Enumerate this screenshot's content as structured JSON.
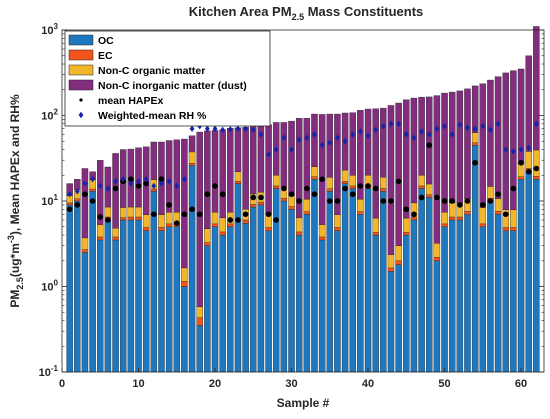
{
  "chart_data": {
    "type": "bar",
    "stacked": true,
    "title_parts": {
      "prefix": "Kitchen Area PM",
      "subscript": "2.5",
      "suffix": " Mass Constituents"
    },
    "xlabel": "Sample #",
    "ylabel_parts": {
      "a": "PM",
      "a_sub": "2.5",
      "b": "(ug*m",
      "b_sup": "-3",
      "c": "), Mean HAPEx and RH%"
    },
    "y_scale": "log",
    "ylim": [
      0.1,
      1000
    ],
    "xlim": [
      0,
      63
    ],
    "x_ticks": [
      0,
      10,
      20,
      30,
      40,
      50,
      60
    ],
    "y_ticks": [
      {
        "value": 0.1,
        "base": "10",
        "exp": "-1"
      },
      {
        "value": 1,
        "base": "10",
        "exp": "0"
      },
      {
        "value": 10,
        "base": "10",
        "exp": "1"
      },
      {
        "value": 100,
        "base": "10",
        "exp": "2"
      },
      {
        "value": 1000,
        "base": "10",
        "exp": "3"
      }
    ],
    "grid": false,
    "legend_position": "top-left",
    "colors": {
      "oc": "#1f77bd",
      "ec": "#f2541b",
      "noc_org": "#f2b62c",
      "noc_inorg": "#822d7e",
      "hapex": "#000000",
      "rh": "#1524a8"
    },
    "legend": [
      {
        "key": "oc",
        "label": "OC",
        "kind": "box"
      },
      {
        "key": "ec",
        "label": "EC",
        "kind": "box"
      },
      {
        "key": "noc_org",
        "label": "Non-C organic matter",
        "kind": "box"
      },
      {
        "key": "noc_inorg",
        "label": "Non-C inorganic matter (dust)",
        "kind": "box"
      },
      {
        "key": "hapex",
        "label": "mean HAPEx",
        "kind": "dot"
      },
      {
        "key": "rh",
        "label": "Weighted-mean RH %",
        "kind": "diamond"
      }
    ],
    "x": [
      1,
      2,
      3,
      4,
      5,
      6,
      7,
      8,
      9,
      10,
      11,
      12,
      13,
      14,
      15,
      16,
      17,
      18,
      19,
      20,
      21,
      22,
      23,
      24,
      25,
      26,
      27,
      28,
      29,
      30,
      31,
      32,
      33,
      34,
      35,
      36,
      37,
      38,
      39,
      40,
      41,
      42,
      43,
      44,
      45,
      46,
      47,
      48,
      49,
      50,
      51,
      52,
      53,
      54,
      55,
      56,
      57,
      58,
      59,
      60,
      61,
      62
    ],
    "series": [
      {
        "key": "oc",
        "name": "OC",
        "values": [
          9,
          10,
          2.5,
          13,
          3.5,
          6,
          3.5,
          6,
          6,
          6,
          4.5,
          13,
          4.5,
          5,
          5,
          1,
          26,
          0.35,
          3,
          5,
          4,
          5,
          16,
          5.5,
          8.5,
          9,
          4.5,
          14,
          10,
          8,
          4,
          7,
          18,
          3.5,
          13,
          4.5,
          16,
          14,
          7,
          14,
          4,
          13,
          1.5,
          1.8,
          4,
          6,
          14,
          11,
          2,
          5,
          6,
          6,
          7,
          45,
          5,
          10,
          7,
          4.5,
          4.5,
          18,
          22,
          18
        ]
      },
      {
        "key": "ec",
        "name": "EC",
        "values": [
          0.5,
          0.6,
          0.2,
          0.8,
          0.3,
          0.5,
          0.3,
          0.4,
          0.5,
          0.5,
          0.4,
          0.8,
          0.4,
          0.4,
          0.4,
          0.15,
          1.5,
          0.08,
          0.25,
          0.4,
          0.35,
          0.4,
          1,
          0.5,
          0.6,
          0.7,
          0.4,
          1,
          0.8,
          0.6,
          0.35,
          0.5,
          1.2,
          0.3,
          0.9,
          0.4,
          1,
          1,
          0.5,
          1,
          0.3,
          1,
          0.15,
          0.2,
          0.3,
          0.5,
          1,
          0.8,
          0.2,
          0.4,
          0.5,
          0.5,
          0.6,
          3,
          0.4,
          0.8,
          0.6,
          0.4,
          0.4,
          1.2,
          2,
          1.5
        ]
      },
      {
        "key": "noc_org",
        "name": "Non-C organic matter",
        "values": [
          2,
          3,
          1,
          4,
          1.5,
          2,
          1,
          2,
          2,
          2,
          2,
          4,
          2,
          2,
          2,
          0.5,
          10,
          0.15,
          1.5,
          2,
          2,
          2,
          5,
          2,
          3,
          3,
          2,
          5,
          4,
          3,
          2,
          3,
          6,
          1.5,
          5,
          2,
          6,
          5,
          3,
          5,
          2,
          5,
          0.7,
          1,
          2,
          3,
          5,
          4,
          1,
          2,
          3,
          3,
          3,
          15,
          3,
          4,
          3,
          3,
          3,
          8,
          14,
          20
        ]
      },
      {
        "key": "noc_inorg",
        "name": "Non-C inorganic matter (dust)",
        "values": [
          4.5,
          4.4,
          20.3,
          4.2,
          24.7,
          16.5,
          31.2,
          31.6,
          32,
          33.5,
          36.1,
          31.2,
          42.1,
          43.6,
          44.6,
          51.4,
          20.5,
          63.5,
          61.3,
          59.6,
          61.7,
          63.6,
          50,
          65,
          61.9,
          63.3,
          71.1,
          63,
          68.2,
          74.4,
          86.6,
          82.5,
          78.8,
          97.7,
          85.1,
          97.1,
          84,
          88,
          104.5,
          99,
          113.7,
          103,
          128.7,
          137,
          146.7,
          150.5,
          144,
          149.2,
          167.8,
          175.6,
          178.5,
          184.5,
          194.4,
          159,
          226.6,
          245.2,
          274.4,
          307.1,
          327.1,
          322.8,
          462,
          1060.5
        ]
      },
      {
        "key": "hapex",
        "name": "mean HAPEx",
        "values": [
          8,
          9,
          12,
          10,
          6.5,
          6,
          14,
          17,
          18,
          15,
          16,
          7,
          18,
          9,
          5.5,
          7,
          8,
          7,
          12,
          15,
          12,
          6,
          6,
          7,
          11,
          11,
          7,
          6,
          14,
          12,
          10,
          14,
          12,
          18,
          10,
          10,
          14,
          12,
          15,
          15,
          14,
          10,
          10,
          17,
          8,
          7,
          11,
          45,
          11,
          10,
          10,
          9,
          10,
          28,
          9,
          10,
          12,
          7,
          14,
          28,
          22,
          24
        ]
      },
      {
        "key": "rh",
        "name": "Weighted-mean RH %",
        "values": [
          12,
          13,
          16,
          18,
          15,
          14,
          17,
          18,
          16,
          17,
          18,
          15,
          16,
          17,
          15,
          18,
          70,
          75,
          70,
          70,
          68,
          69,
          70,
          70,
          68,
          60,
          35,
          40,
          55,
          40,
          52,
          55,
          60,
          45,
          48,
          55,
          50,
          60,
          65,
          58,
          68,
          75,
          80,
          80,
          60,
          55,
          65,
          60,
          70,
          75,
          60,
          78,
          72,
          70,
          75,
          68,
          80,
          40,
          38,
          40,
          42,
          80
        ]
      }
    ]
  }
}
